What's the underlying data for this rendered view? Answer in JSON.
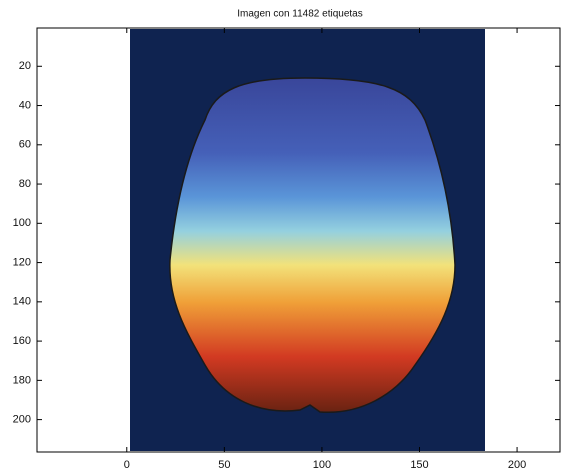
{
  "chart_data": {
    "type": "image",
    "title": "Imagen con 11482 etiquetas",
    "xlim": [
      -46,
      222
    ],
    "xticks": [
      0,
      50,
      100,
      150,
      200
    ],
    "ylim": [
      0.5,
      216.5
    ],
    "yticks": [
      20,
      40,
      60,
      80,
      100,
      120,
      140,
      160,
      180,
      200
    ],
    "y_reversed": true
  }
}
